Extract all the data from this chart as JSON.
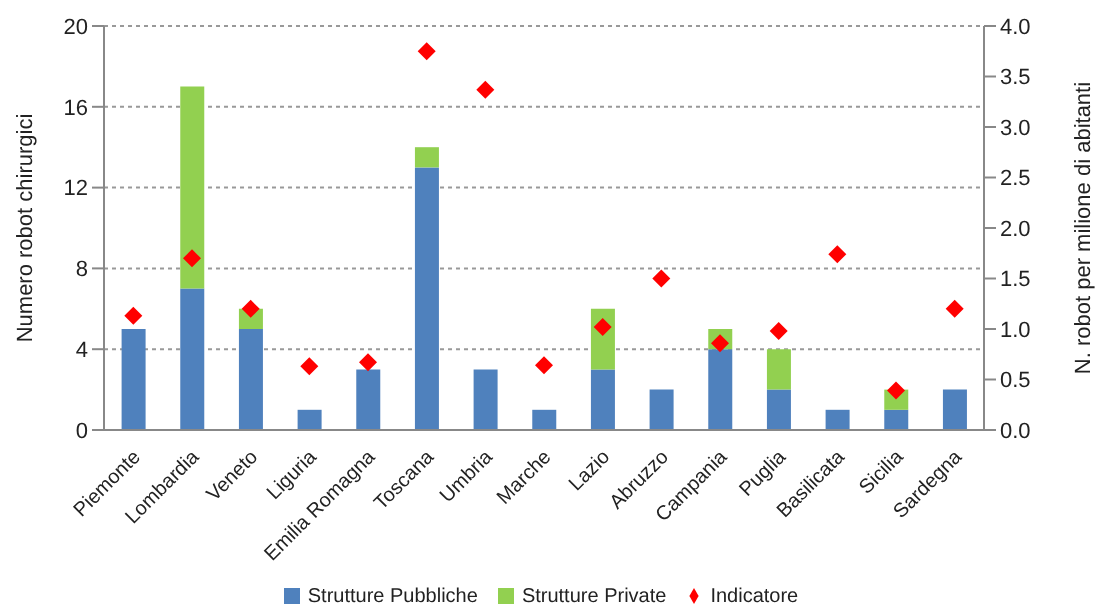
{
  "chart_data": {
    "type": "bar",
    "stacked": true,
    "ylabel": "Numero robot chirurgici",
    "y2label": "N. robot per milione di abitanti",
    "categories": [
      "Piemonte",
      "Lombardia",
      "Veneto",
      "Liguria",
      "Emilia Romagna",
      "Toscana",
      "Umbria",
      "Marche",
      "Lazio",
      "Abruzzo",
      "Campania",
      "Puglia",
      "Basilicata",
      "Sicilia",
      "Sardegna"
    ],
    "series": [
      {
        "name": "Strutture Pubbliche",
        "color": "#4f81bd",
        "values": [
          5,
          7,
          5,
          1,
          3,
          13,
          3,
          1,
          3,
          2,
          4,
          2,
          1,
          1,
          2
        ]
      },
      {
        "name": "Strutture Private",
        "color": "#92d050",
        "values": [
          0,
          10,
          1,
          0,
          0,
          1,
          0,
          0,
          3,
          0,
          1,
          2,
          0,
          1,
          0
        ]
      },
      {
        "name": "Indicatore",
        "type": "scatter",
        "axis": "y2",
        "marker": "diamond",
        "color": "#ff0000",
        "values": [
          1.13,
          1.7,
          1.2,
          0.63,
          0.67,
          3.75,
          3.37,
          0.64,
          1.02,
          1.5,
          0.86,
          0.98,
          1.74,
          0.39,
          1.2
        ]
      }
    ],
    "ylim": [
      0,
      20
    ],
    "yticks": [
      0,
      4,
      8,
      12,
      16,
      20
    ],
    "y2lim": [
      0,
      4
    ],
    "y2ticks": [
      {
        "value": 0,
        "label": "0.0"
      },
      {
        "value": 0.5,
        "label": "0.5"
      },
      {
        "value": 1,
        "label": "1.0"
      },
      {
        "value": 1.5,
        "label": "1.5"
      },
      {
        "value": 2,
        "label": "2.0"
      },
      {
        "value": 2.5,
        "label": "2.5"
      },
      {
        "value": 3,
        "label": "3.0"
      },
      {
        "value": 3.5,
        "label": "3.5"
      },
      {
        "value": 4,
        "label": "4.0"
      }
    ],
    "grid": "y",
    "legend": "bottom"
  }
}
